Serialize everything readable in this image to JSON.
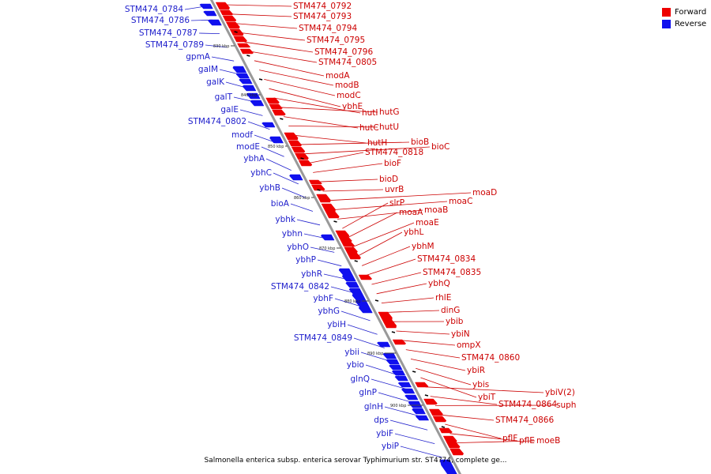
{
  "colors": {
    "forward": "#ee0000",
    "reverse": "#1010ee",
    "label_forward": "#cc0000",
    "label_reverse": "#2020cc"
  },
  "legend": {
    "forward_label": "Forward",
    "reverse_label": "Reverse"
  },
  "caption": "Salmonella enterica subsp. enterica serovar Typhimurium str. ST4?74, complete ge...",
  "ticks": [
    "830 kbp",
    "840 kbp",
    "850 kbp",
    "860 kbp",
    "870 kbp",
    "880 kbp",
    "890 kbp",
    "900 kbp"
  ],
  "forward_labels": [
    "STM474_0792",
    "STM474_0793",
    "STM474_0794",
    "STM474_0795",
    "STM474_0796",
    "STM474_0805",
    "modA",
    "modB",
    "modC",
    "ybhE",
    "hutI",
    "hutG",
    "hutC",
    "hutU",
    "hutH",
    "bioB",
    "bioC",
    "STM474_0818",
    "bioF",
    "bioD",
    "uvrB",
    "moaD",
    "moaC",
    "moaB",
    "slrP",
    "moaA",
    "moaE",
    "ybhL",
    "ybhM",
    "STM474_0834",
    "STM474_0835",
    "ybhQ",
    "rhlE",
    "dinG",
    "ybib",
    "ybiN",
    "ompX",
    "STM474_0860",
    "ybiR",
    "ybis",
    "ybiT",
    "ybiV(2)",
    "STM474_0864",
    "suph",
    "STM474_0866",
    "pflF",
    "pflE",
    "moeB"
  ],
  "reverse_labels": [
    "STM474_0784",
    "STM474_0786",
    "STM474_0787",
    "STM474_0789",
    "gpmA",
    "galM",
    "galK",
    "galT",
    "galE",
    "STM474_0802",
    "modf",
    "modE",
    "ybhA",
    "ybhC",
    "ybhB",
    "bioA",
    "ybhk",
    "ybhn",
    "ybhO",
    "ybhP",
    "ybhR",
    "STM474_0842",
    "ybhF",
    "ybhG",
    "ybiH",
    "STM474_0849",
    "ybii",
    "ybio",
    "glnQ",
    "glnP",
    "glnH",
    "dps",
    "ybiF",
    "ybiP"
  ]
}
